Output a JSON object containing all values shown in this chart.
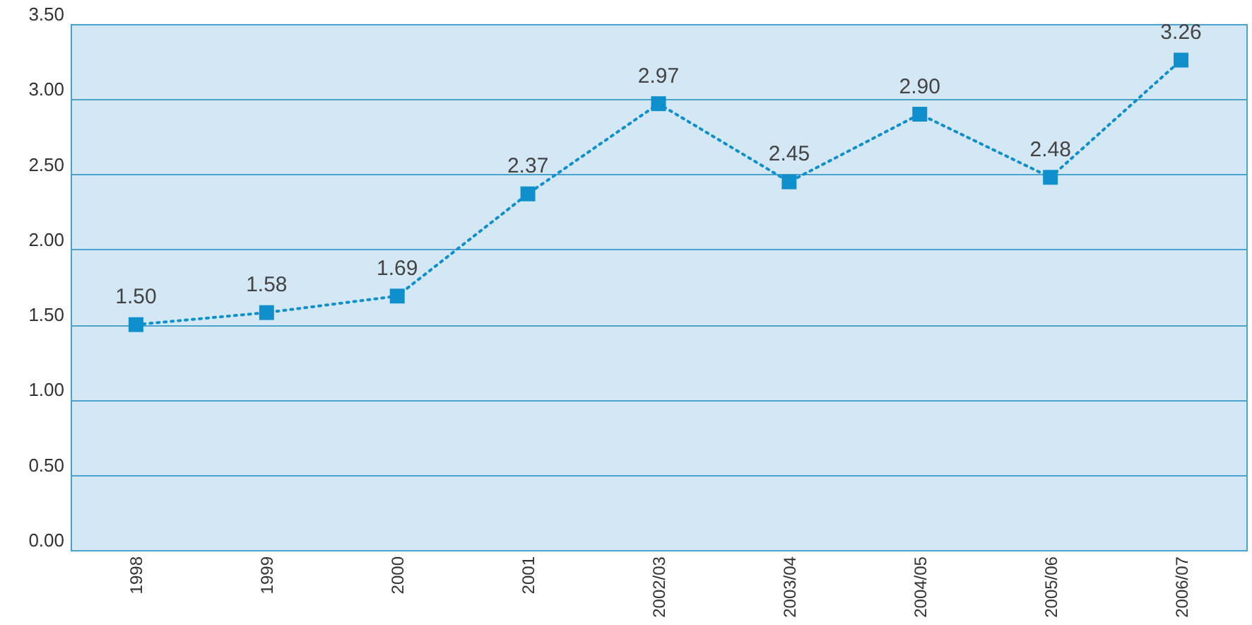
{
  "chart_data": {
    "type": "line",
    "categories": [
      "1998",
      "1999",
      "2000",
      "2001",
      "2002/03",
      "2003/04",
      "2004/05",
      "2005/06",
      "2006/07"
    ],
    "series": [
      {
        "color": "#0f8fcc",
        "values": [
          1.5,
          1.58,
          1.69,
          2.37,
          2.97,
          2.45,
          2.9,
          2.48,
          3.26
        ],
        "value_labels": [
          "1.50",
          "1.58",
          "1.69",
          "2.37",
          "2.97",
          "2.45",
          "2.90",
          "2.48",
          "3.26"
        ]
      }
    ],
    "ylim": [
      0,
      3.5
    ],
    "yticks": [
      {
        "value": 0,
        "label": "0.00"
      },
      {
        "value": 0.5,
        "label": "0.50"
      },
      {
        "value": 1,
        "label": "1.00"
      },
      {
        "value": 1.5,
        "label": "1.50"
      },
      {
        "value": 2,
        "label": "2.00"
      },
      {
        "value": 2.5,
        "label": "2.50"
      },
      {
        "value": 3,
        "label": "3.00"
      },
      {
        "value": 3.5,
        "label": "3.50"
      }
    ],
    "grid": "y",
    "marker": "square",
    "line_style": "dotted"
  }
}
